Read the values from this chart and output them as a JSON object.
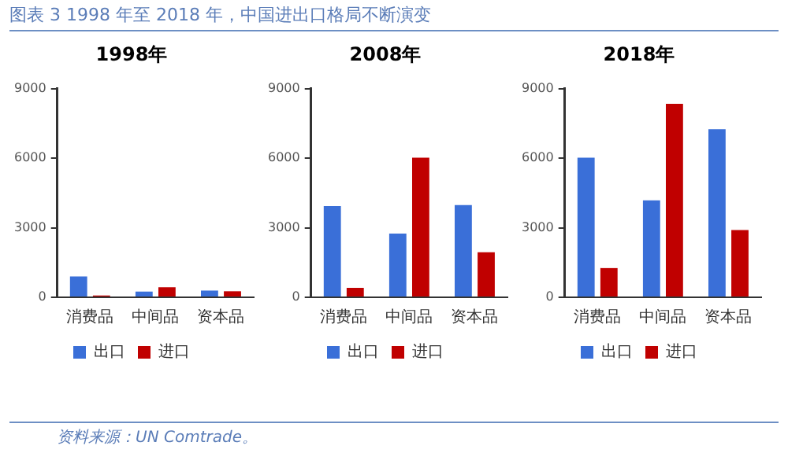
{
  "chart_data": [
    {
      "type": "bar",
      "title": "1998年",
      "categories": [
        "消费品",
        "中间品",
        "资本品"
      ],
      "series": [
        {
          "name": "出口",
          "color": "#3a6fd8",
          "values": [
            900,
            250,
            290
          ]
        },
        {
          "name": "进口",
          "color": "#c00000",
          "values": [
            80,
            430,
            260
          ]
        }
      ],
      "ylim": [
        0,
        9000
      ],
      "yticks": [
        0,
        3000,
        6000,
        9000
      ],
      "grid": false,
      "legend": "bottom",
      "annotations": [
        "图表 3 1998 年至 2018 年，中国进出口格局不断演变"
      ]
    },
    {
      "type": "bar",
      "title": "2008年",
      "categories": [
        "消费品",
        "中间品",
        "资本品"
      ],
      "series": [
        {
          "name": "出口",
          "color": "#3a6fd8",
          "values": [
            3940,
            2750,
            3980
          ]
        },
        {
          "name": "进口",
          "color": "#c00000",
          "values": [
            410,
            6020,
            1940
          ]
        }
      ],
      "ylim": [
        0,
        9000
      ],
      "yticks": [
        0,
        3000,
        6000,
        9000
      ],
      "grid": false,
      "legend": "bottom"
    },
    {
      "type": "bar",
      "title": "2018年",
      "categories": [
        "消费品",
        "中间品",
        "资本品"
      ],
      "series": [
        {
          "name": "出口",
          "color": "#3a6fd8",
          "values": [
            6020,
            4180,
            7250
          ]
        },
        {
          "name": "进口",
          "color": "#c00000",
          "values": [
            1260,
            8350,
            2900
          ]
        }
      ],
      "ylim": [
        0,
        9000
      ],
      "yticks": [
        0,
        3000,
        6000,
        9000
      ],
      "grid": false,
      "legend": "bottom",
      "annotations": [
        "资料来源：UN Comtrade。"
      ]
    }
  ]
}
